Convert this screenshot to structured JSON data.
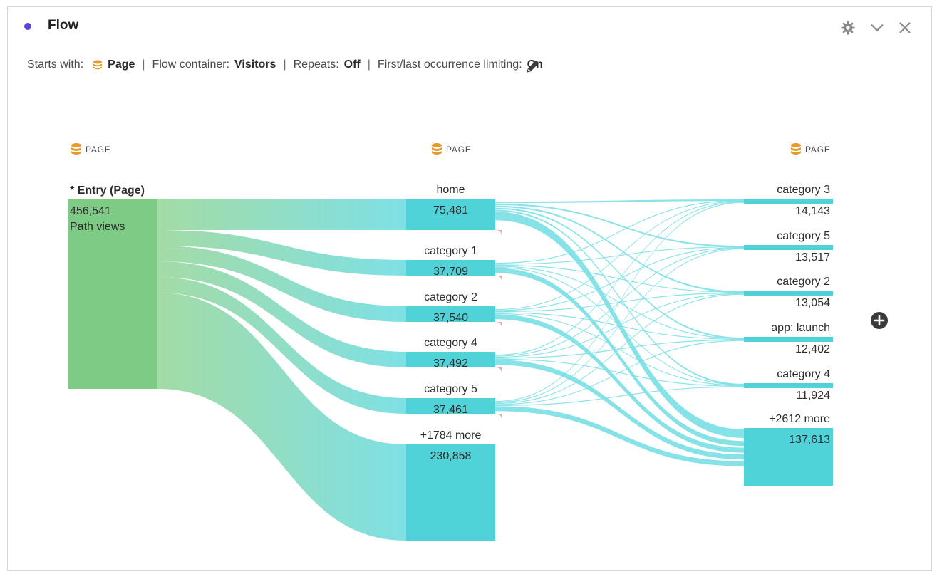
{
  "panel": {
    "title": "Flow",
    "accent_color": "#5a46d6",
    "header_icons": [
      "gear-icon",
      "chevron-down-icon",
      "close-icon"
    ]
  },
  "settings": {
    "starts_with_label": "Starts with:",
    "starts_with_value": "Page",
    "container_label": "Flow container:",
    "container_value": "Visitors",
    "repeats_label": "Repeats:",
    "repeats_value": "Off",
    "limiting_label": "First/last occurrence limiting:",
    "limiting_value": "On",
    "separator": "|",
    "edit_icon": "pencil-icon"
  },
  "flow": {
    "colors": {
      "entry": "#7dcb85",
      "node": "#4fd3d9",
      "link_start": "#a4dba6",
      "link_end": "#7ee0e5",
      "exit": "#f4a3a3",
      "dimension_icon": "#e69a28"
    },
    "columns": [
      {
        "header": "PAGE",
        "nodes": [
          {
            "label": "* Entry (Page)",
            "value": "456,541",
            "sublabel": "Path views"
          }
        ]
      },
      {
        "header": "PAGE",
        "nodes": [
          {
            "label": "home",
            "value": "75,481"
          },
          {
            "label": "category 1",
            "value": "37,709"
          },
          {
            "label": "category 2",
            "value": "37,540"
          },
          {
            "label": "category 4",
            "value": "37,492"
          },
          {
            "label": "category 5",
            "value": "37,461"
          },
          {
            "label": "+1784 more",
            "value": "230,858"
          }
        ]
      },
      {
        "header": "PAGE",
        "nodes": [
          {
            "label": "category 3",
            "value": "14,143"
          },
          {
            "label": "category 5",
            "value": "13,517"
          },
          {
            "label": "category 2",
            "value": "13,054"
          },
          {
            "label": "app: launch",
            "value": "12,402"
          },
          {
            "label": "category 4",
            "value": "11,924"
          },
          {
            "label": "+2612 more",
            "value": "137,613"
          }
        ]
      }
    ],
    "add_column_icon": "plus-circle-icon"
  }
}
